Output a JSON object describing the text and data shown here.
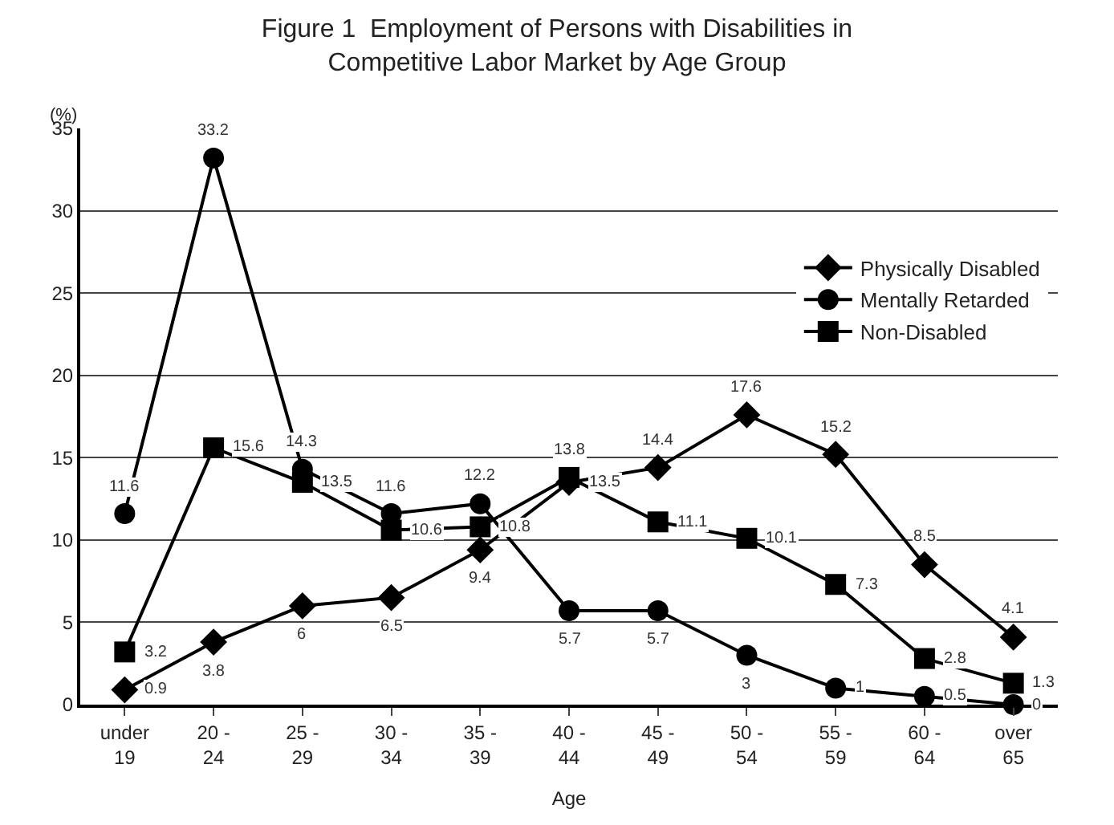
{
  "chart_data": {
    "type": "line",
    "title": "Figure 1  Employment of Persons with Disabilities in\nCompetitive Labor Market by Age Group",
    "xlabel": "Age",
    "ylabel": "(%)",
    "categories": [
      "under 19",
      "20 - 24",
      "25 - 29",
      "30 - 34",
      "35 - 39",
      "40 - 44",
      "45 - 49",
      "50 - 54",
      "55 - 59",
      "60 - 64",
      "over 65"
    ],
    "series": [
      {
        "name": "Physically Disabled",
        "color": "#000000",
        "marker": "diamond",
        "values": [
          0.9,
          3.8,
          6,
          6.5,
          9.4,
          13.5,
          14.4,
          17.6,
          15.2,
          8.5,
          4.1
        ],
        "value_labels": [
          "0.9",
          "3.8",
          "6",
          "6.5",
          "9.4",
          "13.5",
          "14.4",
          "17.6",
          "15.2",
          "8.5",
          "4.1"
        ]
      },
      {
        "name": "Mentally Retarded",
        "color": "#000000",
        "marker": "circle",
        "values": [
          11.6,
          33.2,
          14.3,
          11.6,
          12.2,
          5.7,
          5.7,
          3,
          1,
          0.5,
          0
        ],
        "value_labels": [
          "11.6",
          "33.2",
          "14.3",
          "11.6",
          "12.2",
          "5.7",
          "5.7",
          "3",
          "1",
          "0.5",
          "0"
        ]
      },
      {
        "name": "Non-Disabled",
        "color": "#000000",
        "marker": "square",
        "values": [
          3.2,
          15.6,
          13.5,
          10.6,
          10.8,
          13.8,
          11.1,
          10.1,
          7.3,
          2.8,
          1.3
        ],
        "value_labels": [
          "3.2",
          "15.6",
          "13.5",
          "10.6",
          "10.8",
          "13.8",
          "11.1",
          "10.1",
          "7.3",
          "2.8",
          "1.3"
        ]
      }
    ],
    "ylim": [
      0,
      35
    ],
    "yticks": [
      0,
      5,
      10,
      15,
      20,
      25,
      30,
      35
    ],
    "grid": "y",
    "legend": "top right",
    "line_style": "solid"
  }
}
